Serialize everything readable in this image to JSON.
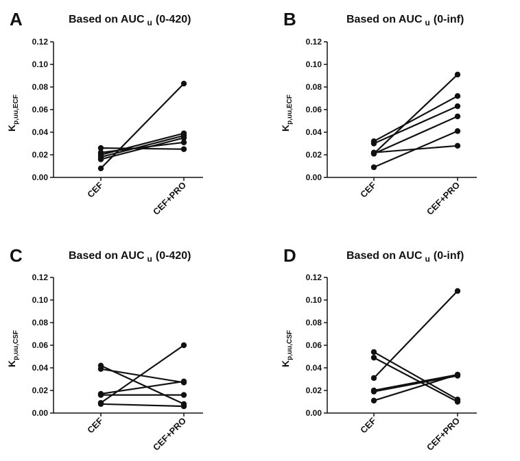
{
  "chart_data": [
    {
      "panel": "A",
      "type": "line",
      "title": "Based on AUC",
      "title_sub": "u",
      "title_suffix": "(0-420)",
      "ylabel": "K",
      "ylabel_sub": "p,uu,ECF",
      "categories": [
        "CEF",
        "CEF+PRO"
      ],
      "ylim": [
        0,
        0.12
      ],
      "yticks": [
        "0.00",
        "0.02",
        "0.04",
        "0.06",
        "0.08",
        "0.10",
        "0.12"
      ],
      "series": [
        {
          "values": [
            0.008,
            0.083
          ]
        },
        {
          "values": [
            0.026,
            0.025
          ]
        },
        {
          "values": [
            0.022,
            0.031
          ]
        },
        {
          "values": [
            0.02,
            0.039
          ]
        },
        {
          "values": [
            0.018,
            0.037
          ]
        },
        {
          "values": [
            0.016,
            0.035
          ]
        }
      ]
    },
    {
      "panel": "B",
      "type": "line",
      "title": "Based on AUC",
      "title_sub": "u",
      "title_suffix": "(0-inf)",
      "ylabel": "K",
      "ylabel_sub": "p,uu,ECF",
      "categories": [
        "CEF",
        "CEF+PRO"
      ],
      "ylim": [
        0,
        0.12
      ],
      "yticks": [
        "0.00",
        "0.02",
        "0.04",
        "0.06",
        "0.08",
        "0.10",
        "0.12"
      ],
      "series": [
        {
          "values": [
            0.021,
            0.091
          ]
        },
        {
          "values": [
            0.032,
            0.072
          ]
        },
        {
          "values": [
            0.03,
            0.063
          ]
        },
        {
          "values": [
            0.021,
            0.054
          ]
        },
        {
          "values": [
            0.009,
            0.041
          ]
        },
        {
          "values": [
            0.022,
            0.028
          ]
        }
      ]
    },
    {
      "panel": "C",
      "type": "line",
      "title": "Based on AUC",
      "title_sub": "u",
      "title_suffix": "(0-420)",
      "ylabel": "K",
      "ylabel_sub": "p,uu,CSF",
      "categories": [
        "CEF",
        "CEF+PRO"
      ],
      "ylim": [
        0,
        0.12
      ],
      "yticks": [
        "0.00",
        "0.02",
        "0.04",
        "0.06",
        "0.08",
        "0.10",
        "0.12"
      ],
      "series": [
        {
          "values": [
            0.009,
            0.06
          ]
        },
        {
          "values": [
            0.042,
            0.008
          ]
        },
        {
          "values": [
            0.039,
            0.027
          ]
        },
        {
          "values": [
            0.017,
            0.028
          ]
        },
        {
          "values": [
            0.016,
            0.016
          ]
        },
        {
          "values": [
            0.008,
            0.006
          ]
        }
      ]
    },
    {
      "panel": "D",
      "type": "line",
      "title": "Based on AUC",
      "title_sub": "u",
      "title_suffix": "(0-inf)",
      "ylabel": "K",
      "ylabel_sub": "p,uu,CSF",
      "categories": [
        "CEF",
        "CEF+PRO"
      ],
      "ylim": [
        0,
        0.12
      ],
      "yticks": [
        "0.00",
        "0.02",
        "0.04",
        "0.06",
        "0.08",
        "0.10",
        "0.12"
      ],
      "series": [
        {
          "values": [
            0.031,
            0.108
          ]
        },
        {
          "values": [
            0.054,
            0.012
          ]
        },
        {
          "values": [
            0.049,
            0.01
          ]
        },
        {
          "values": [
            0.02,
            0.034
          ]
        },
        {
          "values": [
            0.019,
            0.033
          ]
        },
        {
          "values": [
            0.011,
            0.034
          ]
        }
      ]
    }
  ]
}
